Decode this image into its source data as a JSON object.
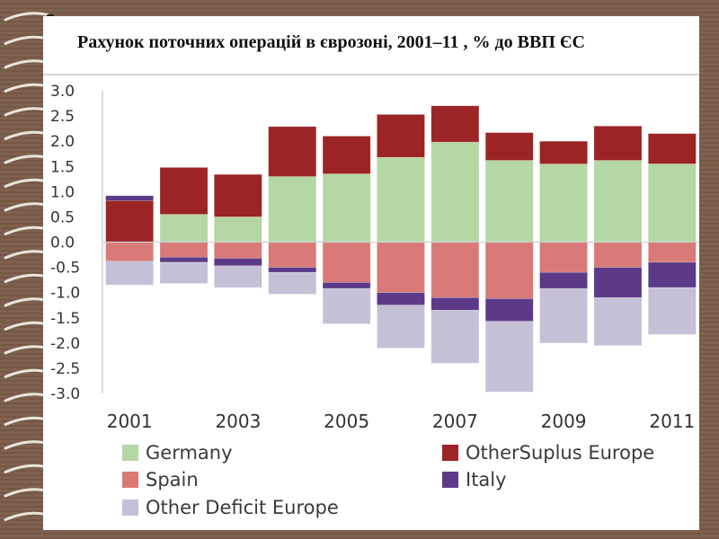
{
  "slide": {
    "title": "Рахунок поточних операцій в єврозоні, 2001–11 , % до ВВП ЄС"
  },
  "chart_data": {
    "type": "bar",
    "stacked": true,
    "title": "Рахунок поточних операцій в єврозоні, 2001–11 , % до ВВП ЄС",
    "xlabel": "",
    "ylabel": "",
    "ylim": [
      -3.0,
      3.0
    ],
    "yticks": [
      "3.0",
      "2.5",
      "2.0",
      "1.5",
      "1.0",
      "0.5",
      "0.0",
      "-0.5",
      "-1.0",
      "-1.5",
      "-2.0",
      "-2.5",
      "-3.0"
    ],
    "categories": [
      "2001",
      "2002",
      "2003",
      "2004",
      "2005",
      "2006",
      "2007",
      "2008",
      "2009",
      "2010",
      "2011"
    ],
    "xtick_labels": [
      "2001",
      "",
      "2003",
      "",
      "2005",
      "",
      "2007",
      "",
      "2009",
      "",
      "2011"
    ],
    "grid": false,
    "legend_position": "bottom",
    "series": [
      {
        "name": "Germany",
        "color": "#b5d7a4",
        "values": [
          0.0,
          0.55,
          0.5,
          1.3,
          1.35,
          1.68,
          1.98,
          1.62,
          1.55,
          1.62,
          1.55
        ]
      },
      {
        "name": "Other Suplus Europe",
        "color": "#9c2424",
        "values": [
          0.82,
          0.93,
          0.84,
          0.99,
          0.75,
          0.85,
          0.72,
          0.55,
          0.45,
          0.68,
          0.6
        ]
      },
      {
        "name": "Italy",
        "color": "#5c3a88",
        "values": [
          0.1,
          0.0,
          0.0,
          0.0,
          0.0,
          0.0,
          0.0,
          0.0,
          0.0,
          0.0,
          0.0
        ]
      },
      {
        "name": "Spain",
        "color": "#d97a78",
        "values": [
          -0.38,
          -0.3,
          -0.32,
          -0.5,
          -0.8,
          -1.0,
          -1.1,
          -1.12,
          -0.6,
          -0.5,
          -0.4
        ]
      },
      {
        "name": "Italy",
        "color": "#5c3a88",
        "values": [
          0.0,
          -0.1,
          -0.15,
          -0.1,
          -0.12,
          -0.25,
          -0.25,
          -0.45,
          -0.32,
          -0.6,
          -0.5
        ]
      },
      {
        "name": "Other Deficit Europe",
        "color": "#c5c0d6",
        "values": [
          -0.47,
          -0.42,
          -0.43,
          -0.43,
          -0.7,
          -0.85,
          -1.05,
          -1.4,
          -1.08,
          -0.95,
          -0.93
        ]
      }
    ],
    "legend": [
      {
        "label": "Germany",
        "color": "#b5d7a4"
      },
      {
        "label": "OtherSuplus Europe",
        "color": "#9c2424"
      },
      {
        "label": "Spain",
        "color": "#d97a78"
      },
      {
        "label": "Italy",
        "color": "#5c3a88"
      },
      {
        "label": "Other Deficit Europe",
        "color": "#c5c0d6"
      }
    ]
  }
}
